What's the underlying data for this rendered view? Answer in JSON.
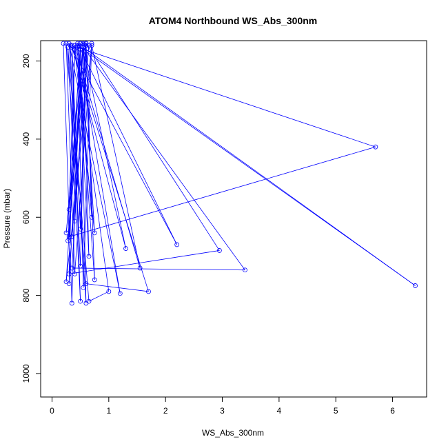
{
  "chart_data": {
    "type": "line",
    "title": "ATOM4 Northbound WS_Abs_300nm",
    "xlabel": "WS_Abs_300nm",
    "ylabel": "Pressure (mbar)",
    "xlim": [
      -0.2,
      6.6
    ],
    "ylim": [
      1060,
      148
    ],
    "y_axis_reversed": true,
    "grid": false,
    "legend": "none",
    "x_ticks": [
      "0",
      "1",
      "2",
      "3",
      "4",
      "5",
      "6"
    ],
    "y_ticks": [
      "200",
      "400",
      "600",
      "800",
      "1000"
    ],
    "colors": {
      "series": "#0000ff",
      "axis": "#000000"
    },
    "series": [
      {
        "x": [
          0.2,
          0.35,
          0.5,
          0.6,
          0.3,
          1.2,
          0.45,
          0.55,
          0.7,
          0.4,
          0.25,
          0.6,
          1.7,
          0.35,
          0.5,
          0.28,
          0.65,
          1.0,
          0.4,
          0.3,
          0.55,
          6.4,
          0.45,
          0.75,
          0.6,
          0.35,
          3.4,
          0.5,
          0.25,
          0.7,
          1.55,
          0.4,
          0.3,
          2.95,
          0.6,
          0.5,
          0.32,
          2.2,
          0.45,
          0.65,
          0.55,
          1.3,
          0.35,
          0.5,
          0.6,
          0.28,
          0.4,
          0.75,
          0.55,
          0.3,
          5.7,
          0.45,
          0.7,
          0.6,
          0.25,
          0.55,
          0.35,
          0.65,
          0.3,
          0.5,
          0.4,
          0.6
        ],
        "y": [
          155,
          820,
          155,
          820,
          155,
          795,
          160,
          780,
          155,
          745,
          155,
          770,
          790,
          165,
          815,
          165,
          815,
          790,
          160,
          770,
          165,
          775,
          160,
          760,
          155,
          730,
          735,
          155,
          765,
          160,
          730,
          160,
          745,
          685,
          155,
          725,
          160,
          670,
          155,
          700,
          165,
          680,
          160,
          630,
          155,
          660,
          170,
          640,
          155,
          650,
          420,
          165,
          600,
          160,
          640,
          150,
          650,
          160,
          580,
          170,
          610,
          155
        ]
      }
    ]
  }
}
